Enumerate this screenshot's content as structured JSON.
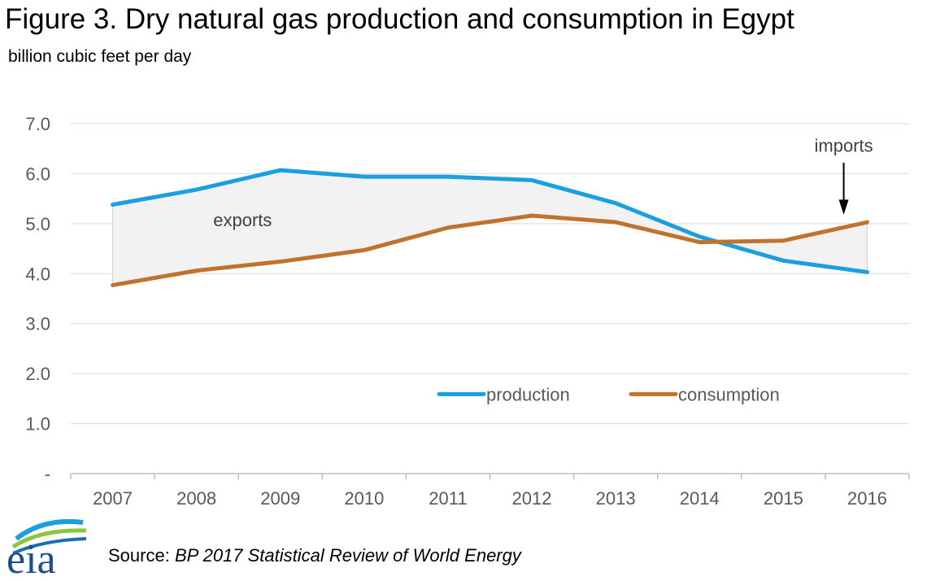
{
  "title": "Figure 3. Dry natural gas production and consumption in Egypt",
  "unit_label": "billion cubic feet per day",
  "source_prefix": "Source: ",
  "source_title": "BP 2017 Statistical Review of World Energy",
  "logo_text": "eia",
  "colors": {
    "production": "#1a9fdf",
    "consumption": "#c0732c",
    "fill": "#f2f2f2",
    "grid": "#d9d9d9"
  },
  "chart_data": {
    "type": "line",
    "categories": [
      "2007",
      "2008",
      "2009",
      "2010",
      "2011",
      "2012",
      "2013",
      "2014",
      "2015",
      "2016"
    ],
    "series": [
      {
        "name": "production",
        "values": [
          5.38,
          5.68,
          6.07,
          5.94,
          5.94,
          5.87,
          5.41,
          4.74,
          4.26,
          4.03
        ]
      },
      {
        "name": "consumption",
        "values": [
          3.77,
          4.06,
          4.24,
          4.47,
          4.92,
          5.16,
          5.03,
          4.63,
          4.66,
          5.03
        ]
      }
    ],
    "ylim": [
      0,
      7
    ],
    "yticks": [
      "-",
      "1.0",
      "2.0",
      "3.0",
      "4.0",
      "5.0",
      "6.0",
      "7.0"
    ],
    "grid": true,
    "legend_position": "bottom-right",
    "annotations": [
      {
        "text": "exports"
      },
      {
        "text": "imports"
      }
    ]
  }
}
